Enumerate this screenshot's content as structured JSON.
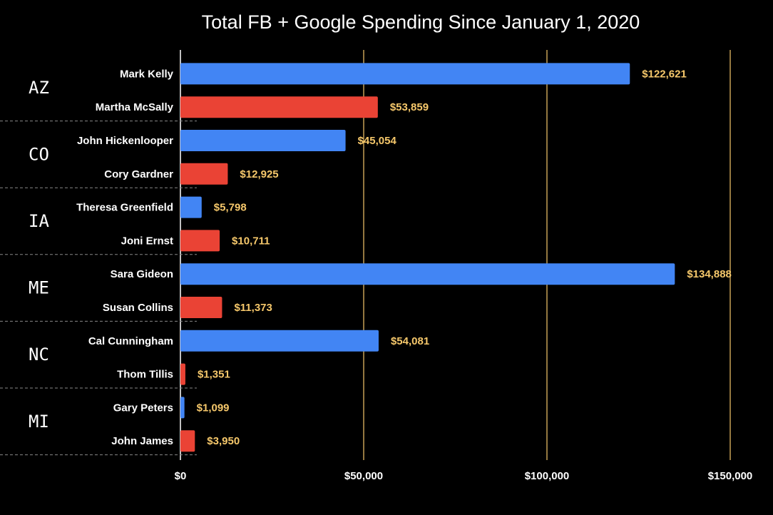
{
  "chart_data": {
    "type": "bar",
    "orientation": "horizontal",
    "title": "Total FB + Google Spending Since January 1, 2020",
    "xlabel": "",
    "ylabel": "",
    "xlim": [
      0,
      150000
    ],
    "x_ticks": [
      0,
      50000,
      100000,
      150000
    ],
    "x_tick_labels": [
      "$0",
      "$50,000",
      "$100,000",
      "$150,000"
    ],
    "gridlines": true,
    "colors": {
      "democrat": "#4285f4",
      "republican": "#ea4335",
      "grid": "#f6c86b",
      "value_label": "#f6c86b"
    },
    "groups": [
      {
        "state": "AZ",
        "candidates": [
          {
            "name": "Mark Kelly",
            "value": 122621,
            "label": "$122,621",
            "party": "democrat"
          },
          {
            "name": "Martha McSally",
            "value": 53859,
            "label": "$53,859",
            "party": "republican"
          }
        ]
      },
      {
        "state": "CO",
        "candidates": [
          {
            "name": "John Hickenlooper",
            "value": 45054,
            "label": "$45,054",
            "party": "democrat"
          },
          {
            "name": "Cory Gardner",
            "value": 12925,
            "label": "$12,925",
            "party": "republican"
          }
        ]
      },
      {
        "state": "IA",
        "candidates": [
          {
            "name": "Theresa Greenfield",
            "value": 5798,
            "label": "$5,798",
            "party": "democrat"
          },
          {
            "name": "Joni Ernst",
            "value": 10711,
            "label": "$10,711",
            "party": "republican"
          }
        ]
      },
      {
        "state": "ME",
        "candidates": [
          {
            "name": "Sara Gideon",
            "value": 134888,
            "label": "$134,888",
            "party": "democrat"
          },
          {
            "name": "Susan Collins",
            "value": 11373,
            "label": "$11,373",
            "party": "republican"
          }
        ]
      },
      {
        "state": "NC",
        "candidates": [
          {
            "name": "Cal Cunningham",
            "value": 54081,
            "label": "$54,081",
            "party": "democrat"
          },
          {
            "name": "Thom Tillis",
            "value": 1351,
            "label": "$1,351",
            "party": "republican"
          }
        ]
      },
      {
        "state": "MI",
        "candidates": [
          {
            "name": "Gary Peters",
            "value": 1099,
            "label": "$1,099",
            "party": "democrat"
          },
          {
            "name": "John James",
            "value": 3950,
            "label": "$3,950",
            "party": "republican"
          }
        ]
      }
    ]
  }
}
